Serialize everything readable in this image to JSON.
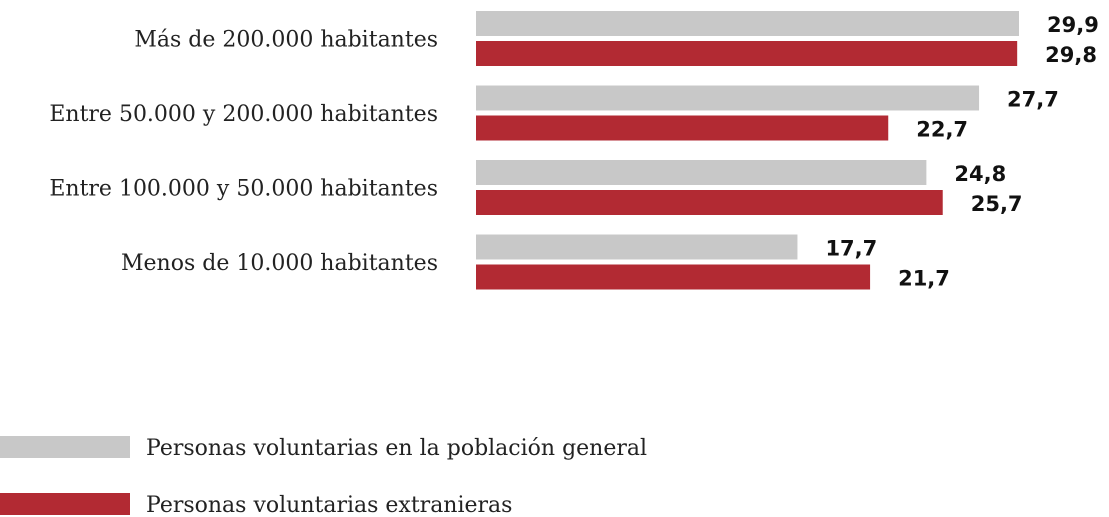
{
  "chart_data": {
    "type": "bar",
    "orientation": "horizontal",
    "categories": [
      "Más de 200.000 habitantes",
      "Entre 50.000 y 200.000 habitantes",
      "Entre 100.000 y 50.000 habitantes",
      "Menos de 10.000 habitantes"
    ],
    "series": [
      {
        "name": "Personas voluntarias en la población general",
        "values": [
          29.9,
          27.7,
          24.8,
          17.7
        ],
        "value_labels": [
          "29,9",
          "27,7",
          "24,8",
          "17,7"
        ],
        "color": "#c8c8c8"
      },
      {
        "name": "Personas voluntarias extranieras",
        "values": [
          29.8,
          22.7,
          25.7,
          21.7
        ],
        "value_labels": [
          "29,8",
          "22,7",
          "25,7",
          "21,7"
        ],
        "color": "#b22a33"
      }
    ],
    "xlim": [
      0,
      29.9
    ],
    "grid": false,
    "axes_visible": false,
    "legend_position": "bottom-left"
  }
}
